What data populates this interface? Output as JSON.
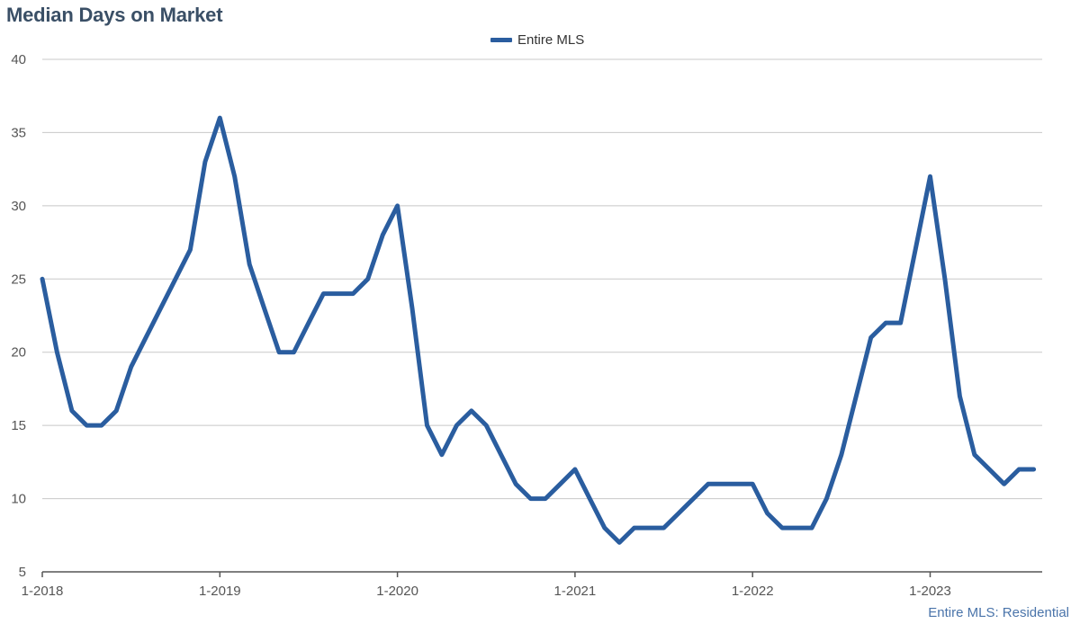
{
  "title": "Median Days on Market",
  "footnote": "Entire MLS: Residential",
  "colors": {
    "series": "#2a5d9f",
    "grid": "#c8c8c8",
    "axis": "#555555"
  },
  "chart_data": {
    "type": "line",
    "title": "Median Days on Market",
    "xlabel": "",
    "ylabel": "",
    "ylim": [
      5,
      40
    ],
    "yticks": [
      5,
      10,
      15,
      20,
      25,
      30,
      35,
      40
    ],
    "xticks": [
      {
        "label": "1-2018",
        "index": 0
      },
      {
        "label": "1-2019",
        "index": 12
      },
      {
        "label": "1-2020",
        "index": 24
      },
      {
        "label": "1-2021",
        "index": 36
      },
      {
        "label": "1-2022",
        "index": 48
      },
      {
        "label": "1-2023",
        "index": 60
      }
    ],
    "grid": true,
    "legend": "top-center",
    "series": [
      {
        "name": "Entire MLS",
        "values": [
          25,
          20,
          16,
          15,
          15,
          16,
          19,
          21,
          23,
          25,
          27,
          33,
          36,
          32,
          26,
          23,
          20,
          20,
          22,
          24,
          24,
          24,
          25,
          28,
          30,
          23,
          15,
          13,
          15,
          16,
          15,
          13,
          11,
          10,
          10,
          11,
          12,
          10,
          8,
          7,
          8,
          8,
          8,
          9,
          10,
          11,
          11,
          11,
          11,
          9,
          8,
          8,
          8,
          10,
          13,
          17,
          21,
          22,
          22,
          27,
          32,
          25,
          17,
          13,
          12,
          11,
          12,
          12
        ]
      }
    ]
  }
}
